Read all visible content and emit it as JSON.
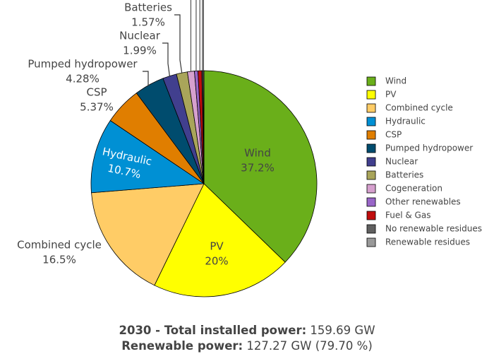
{
  "chart_data": {
    "type": "pie",
    "slices": [
      {
        "name": "Wind",
        "value": 37.2,
        "label": "37.2%",
        "color": "#6aaf1a"
      },
      {
        "name": "PV",
        "value": 20.0,
        "label": "20%",
        "color": "#ffff00"
      },
      {
        "name": "Combined cycle",
        "value": 16.5,
        "label": "16.5%",
        "color": "#ffcc66"
      },
      {
        "name": "Hydraulic",
        "value": 10.7,
        "label": "10.7%",
        "color": "#0090d4"
      },
      {
        "name": "CSP",
        "value": 5.37,
        "label": "5.37%",
        "color": "#e07e00"
      },
      {
        "name": "Pumped hydropower",
        "value": 4.28,
        "label": "4.28%",
        "color": "#004c6e"
      },
      {
        "name": "Nuclear",
        "value": 1.99,
        "label": "1.99%",
        "color": "#413f8e"
      },
      {
        "name": "Batteries",
        "value": 1.57,
        "label": "1.57%",
        "color": "#a9a55a"
      },
      {
        "name": "Cogeneration",
        "value": 1.0,
        "label": "",
        "color": "#d6a0ce"
      },
      {
        "name": "Other renewables",
        "value": 0.5,
        "label": "",
        "color": "#9966c8"
      },
      {
        "name": "Fuel & Gas",
        "value": 0.55,
        "label": "",
        "color": "#c00d0d"
      },
      {
        "name": "No renewable residues",
        "value": 0.18,
        "label": "",
        "color": "#606060"
      },
      {
        "name": "Renewable residues",
        "value": 0.12,
        "label": "",
        "color": "#999999"
      }
    ],
    "legend_placement": "right"
  },
  "footer": {
    "line1_bold": "2030 - Total installed power:",
    "line1_value": " 159.69 GW",
    "line2_bold": "Renewable power:",
    "line2_value": " 127.27 GW (79.70 %)"
  }
}
